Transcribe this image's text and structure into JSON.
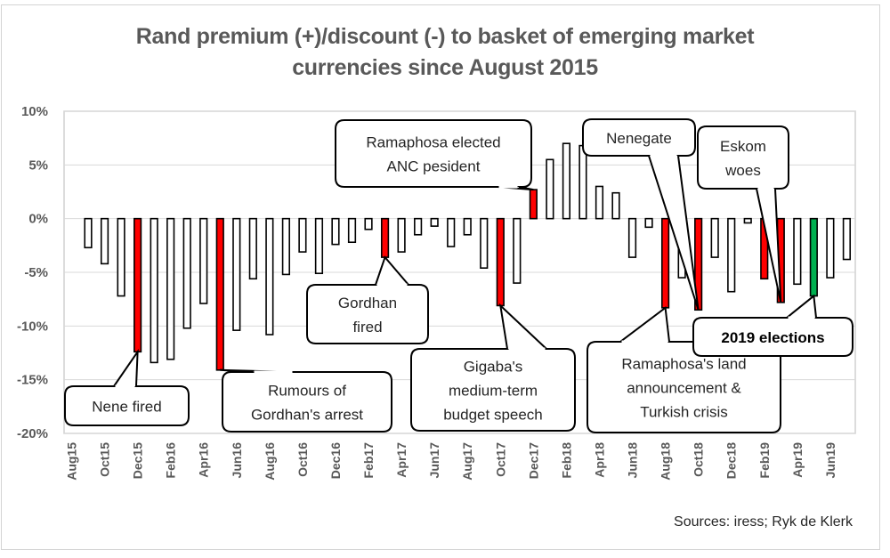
{
  "chart_data": {
    "type": "bar",
    "title": "Rand premium (+)/discount (-) to basket of emerging market currencies since August 2015",
    "title_lines": [
      "Rand premium (+)/discount (-) to basket of emerging market",
      "currencies since August 2015"
    ],
    "xlabel": "",
    "ylabel": "",
    "ylim": [
      -20,
      10
    ],
    "yticks": [
      10,
      5,
      0,
      -5,
      -10,
      -15,
      -20
    ],
    "ytick_labels": [
      "10%",
      "5%",
      "0%",
      "-5%",
      "-10%",
      "-15%",
      "-20%"
    ],
    "grid": true,
    "legend": "none",
    "categories": [
      "Aug15",
      "Sep15",
      "Oct15",
      "Nov15",
      "Dec15",
      "Jan16",
      "Feb16",
      "Mar16",
      "Apr16",
      "May16",
      "Jun16",
      "Jul16",
      "Aug16",
      "Sep16",
      "Oct16",
      "Nov16",
      "Dec16",
      "Jan17",
      "Feb17",
      "Mar17",
      "Apr17",
      "May17",
      "Jun17",
      "Jul17",
      "Aug17",
      "Sep17",
      "Oct17",
      "Nov17",
      "Dec17",
      "Jan18",
      "Feb18",
      "Mar18",
      "Apr18",
      "May18",
      "Jun18",
      "Jul18",
      "Aug18",
      "Sep18",
      "Oct18",
      "Nov18",
      "Dec18",
      "Jan19",
      "Feb19",
      "Mar19",
      "Apr19",
      "May19",
      "Jun19",
      "Jul19"
    ],
    "xtick_labels": [
      "Aug15",
      "Oct15",
      "Dec15",
      "Feb16",
      "Apr16",
      "Jun16",
      "Aug16",
      "Oct16",
      "Dec16",
      "Feb17",
      "Apr17",
      "Jun17",
      "Aug17",
      "Oct17",
      "Dec17",
      "Feb18",
      "Apr18",
      "Jun18",
      "Aug18",
      "Oct18",
      "Dec18",
      "Feb19",
      "Apr19",
      "Jun19"
    ],
    "series": [
      {
        "name": "Rand premium/discount (%)",
        "values": [
          0,
          -2.7,
          -4.2,
          -7.2,
          -12.4,
          -13.4,
          -13.1,
          -10.2,
          -7.9,
          -14.1,
          -10.4,
          -5.6,
          -10.8,
          -5.2,
          -3.1,
          -5.1,
          -2.4,
          -2.2,
          -1.0,
          -3.6,
          -3.1,
          -1.5,
          -0.7,
          -2.6,
          -1.5,
          -4.6,
          -8.1,
          -6.0,
          2.7,
          5.5,
          7.0,
          6.8,
          3.0,
          2.4,
          -3.6,
          -0.8,
          -8.3,
          -5.5,
          -8.5,
          -3.6,
          -6.8,
          -0.4,
          -5.6,
          -7.8,
          -6.1,
          -7.2,
          -5.5,
          -3.8
        ],
        "highlight": {
          "Dec15": "event",
          "May16": "event",
          "Mar17": "event",
          "Oct17": "event",
          "Dec17": "event",
          "Aug18": "event",
          "Oct18": "event",
          "Feb19": "event",
          "Mar19": "event",
          "May19": "election"
        }
      }
    ],
    "colors": {
      "default_fill": "#ffffff",
      "outline": "#000000",
      "event": "#ff0000",
      "election": "#00b050",
      "grid": "#d9d9d9",
      "axis_text": "#595959"
    },
    "annotations": [
      {
        "id": "nene-fired",
        "target": "Dec15",
        "lines": [
          "Nene fired"
        ],
        "bold": false
      },
      {
        "id": "rumours-gordhan-arrest",
        "target": "May16",
        "lines": [
          "Rumours of",
          "Gordhan's arrest"
        ],
        "bold": false
      },
      {
        "id": "gordhan-fired",
        "target": "Mar17",
        "lines": [
          "Gordhan",
          "fired"
        ],
        "bold": false
      },
      {
        "id": "gigaba-mtbs",
        "target": "Oct17",
        "lines": [
          "Gigaba's",
          "medium-term",
          "budget speech"
        ],
        "bold": false
      },
      {
        "id": "ramaphosa-anc",
        "target": "Dec17",
        "lines": [
          "Ramaphosa elected",
          "ANC pesident"
        ],
        "bold": false
      },
      {
        "id": "nenegate",
        "target": "Oct18",
        "lines": [
          "Nenegate"
        ],
        "bold": false
      },
      {
        "id": "eskom-woes",
        "target": "Mar19",
        "lines": [
          "Eskom",
          "woes"
        ],
        "bold": false
      },
      {
        "id": "ramaphosa-land",
        "target": "Aug18",
        "lines": [
          "Ramaphosa's land",
          "announcement &",
          "Turkish crisis"
        ],
        "bold": false
      },
      {
        "id": "elections-2019",
        "target": "May19",
        "lines": [
          "2019 elections"
        ],
        "bold": true
      }
    ],
    "source": "Sources: iress; Ryk de Klerk"
  }
}
